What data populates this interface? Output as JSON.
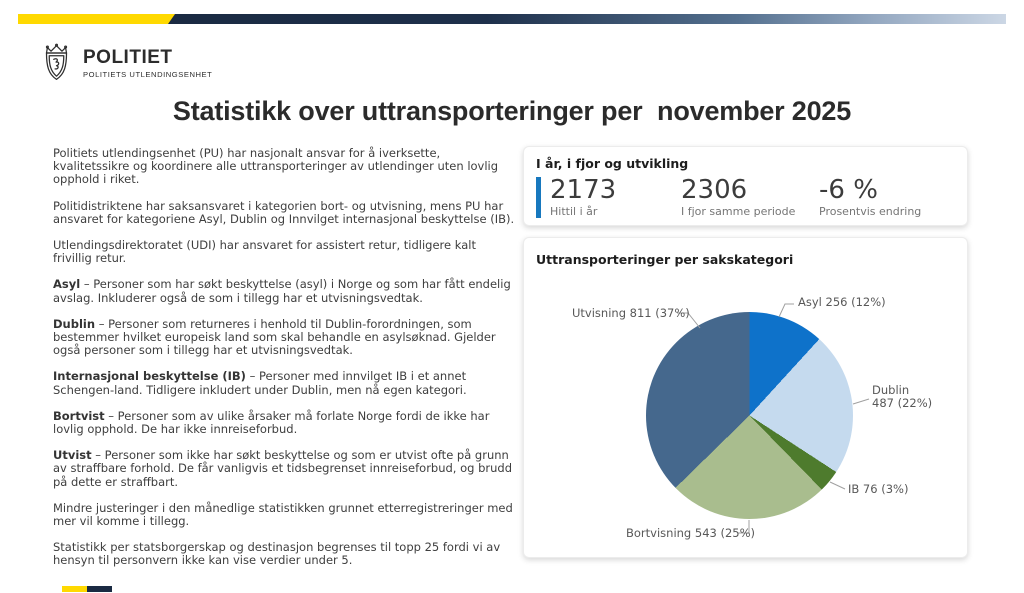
{
  "header": {
    "logo_title": "POLITIET",
    "logo_subtitle": "POLITIETS UTLENDINGSENHET"
  },
  "page_title": "Statistikk over uttransporteringer per  november 2025",
  "intro_paragraphs": [
    {
      "lead": "",
      "text": "Politiets utlendingsenhet (PU) har nasjonalt ansvar for å iverksette, kvalitetssikre og koordinere alle uttransporteringer av utlendinger uten lovlig opphold i riket."
    },
    {
      "lead": "",
      "text": "Politidistriktene har saksansvaret i kategorien bort- og utvisning, mens PU har ansvaret for kategoriene Asyl, Dublin og Innvilget internasjonal beskyttelse (IB)."
    },
    {
      "lead": "",
      "text": "Utlendingsdirektoratet (UDI) har ansvaret for assistert retur, tidligere kalt frivillig retur."
    },
    {
      "lead": "Asyl",
      "text": " – Personer som har søkt beskyttelse (asyl) i Norge og som har fått endelig avslag. Inkluderer også de som i tillegg har et utvisningsvedtak."
    },
    {
      "lead": "Dublin",
      "text": " – Personer som returneres i henhold til Dublin-forordningen, som bestemmer hvilket europeisk land som skal behandle en asylsøknad. Gjelder også personer som i tillegg har et utvisningsvedtak."
    },
    {
      "lead": "Internasjonal beskyttelse (IB)",
      "text": " – Personer med innvilget IB i et annet Schengen-land. Tidligere inkludert under Dublin, men nå egen kategori."
    },
    {
      "lead": "Bortvist",
      "text": " – Personer som av ulike årsaker må forlate Norge fordi de ikke har lovlig opphold. De har ikke innreiseforbud."
    },
    {
      "lead": "Utvist",
      "text": " – Personer som ikke har søkt beskyttelse og som er utvist ofte på grunn av straffbare forhold. De får vanligvis et tidsbegrenset innreiseforbud, og brudd på dette er straffbart."
    },
    {
      "lead": "",
      "text": "Mindre justeringer i den månedlige statistikken grunnet etterregistreringer med mer vil komme i tillegg."
    },
    {
      "lead": "",
      "text": "Statistikk per statsborgerskap og destinasjon begrenses til topp 25 fordi vi av hensyn til personvern ikke kan vise verdier under 5."
    }
  ],
  "summary_card": {
    "title": "I år, i fjor og utvikling",
    "accent_color": "#1778be",
    "stats": [
      {
        "value": "2173",
        "label": "Hittil i år"
      },
      {
        "value": "2306",
        "label": "I fjor samme periode"
      },
      {
        "value": "-6 %",
        "label": "Prosentvis endring"
      }
    ]
  },
  "chart_card": {
    "title": "Uttransporteringer per sakskategori"
  },
  "chart_data": {
    "type": "pie",
    "title": "Uttransporteringer per sakskategori",
    "start_angle_deg": 0,
    "direction": "clockwise",
    "total": 2173,
    "slices": [
      {
        "category": "Asyl",
        "value": 256,
        "percent": 12,
        "label_text": "Asyl 256 (12%)",
        "color": "#0e72ca"
      },
      {
        "category": "Dublin",
        "value": 487,
        "percent": 22,
        "label_text": "Dublin\n487 (22%)",
        "color": "#c5daee"
      },
      {
        "category": "IB",
        "value": 76,
        "percent": 3,
        "label_text": "IB 76 (3%)",
        "color": "#4e7b2d"
      },
      {
        "category": "Bortvisning",
        "value": 543,
        "percent": 25,
        "label_text": "Bortvisning 543 (25%)",
        "color": "#a9bd8e"
      },
      {
        "category": "Utvisning",
        "value": 811,
        "percent": 37,
        "label_text": "Utvisning 811 (37%)",
        "color": "#45688d"
      }
    ]
  }
}
